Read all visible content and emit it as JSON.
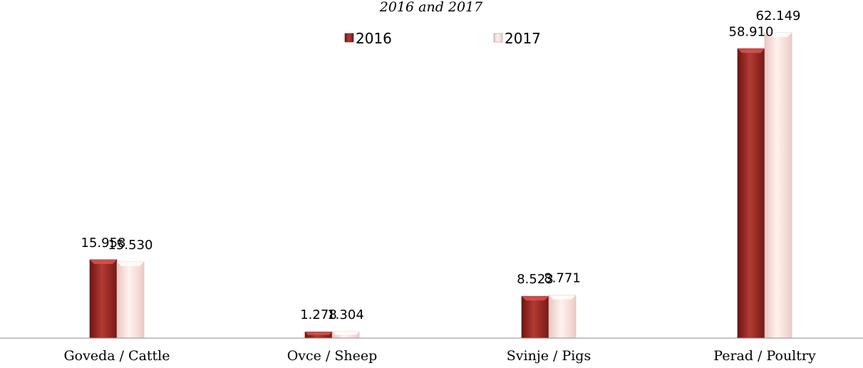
{
  "chart_data": {
    "type": "bar",
    "subtitle": "2016 and 2017",
    "categories": [
      "Goveda / Cattle",
      "Ovce / Sheep",
      "Svinje / Pigs",
      "Perad / Poultry"
    ],
    "series": [
      {
        "name": "2016",
        "values": [
          15.958,
          1.278,
          8.523,
          58.91
        ],
        "labels": [
          "15.958",
          "1.278",
          "8.523",
          "58.910"
        ],
        "color": "#a8302c"
      },
      {
        "name": "2017",
        "values": [
          15.53,
          1.304,
          8.771,
          62.149
        ],
        "labels": [
          "15.530",
          "1.304",
          "8.771",
          "62.149"
        ],
        "color": "#f7dcd8"
      }
    ],
    "ylim": [
      0,
      62.149
    ],
    "grid": false,
    "legend_position": "top-center"
  }
}
